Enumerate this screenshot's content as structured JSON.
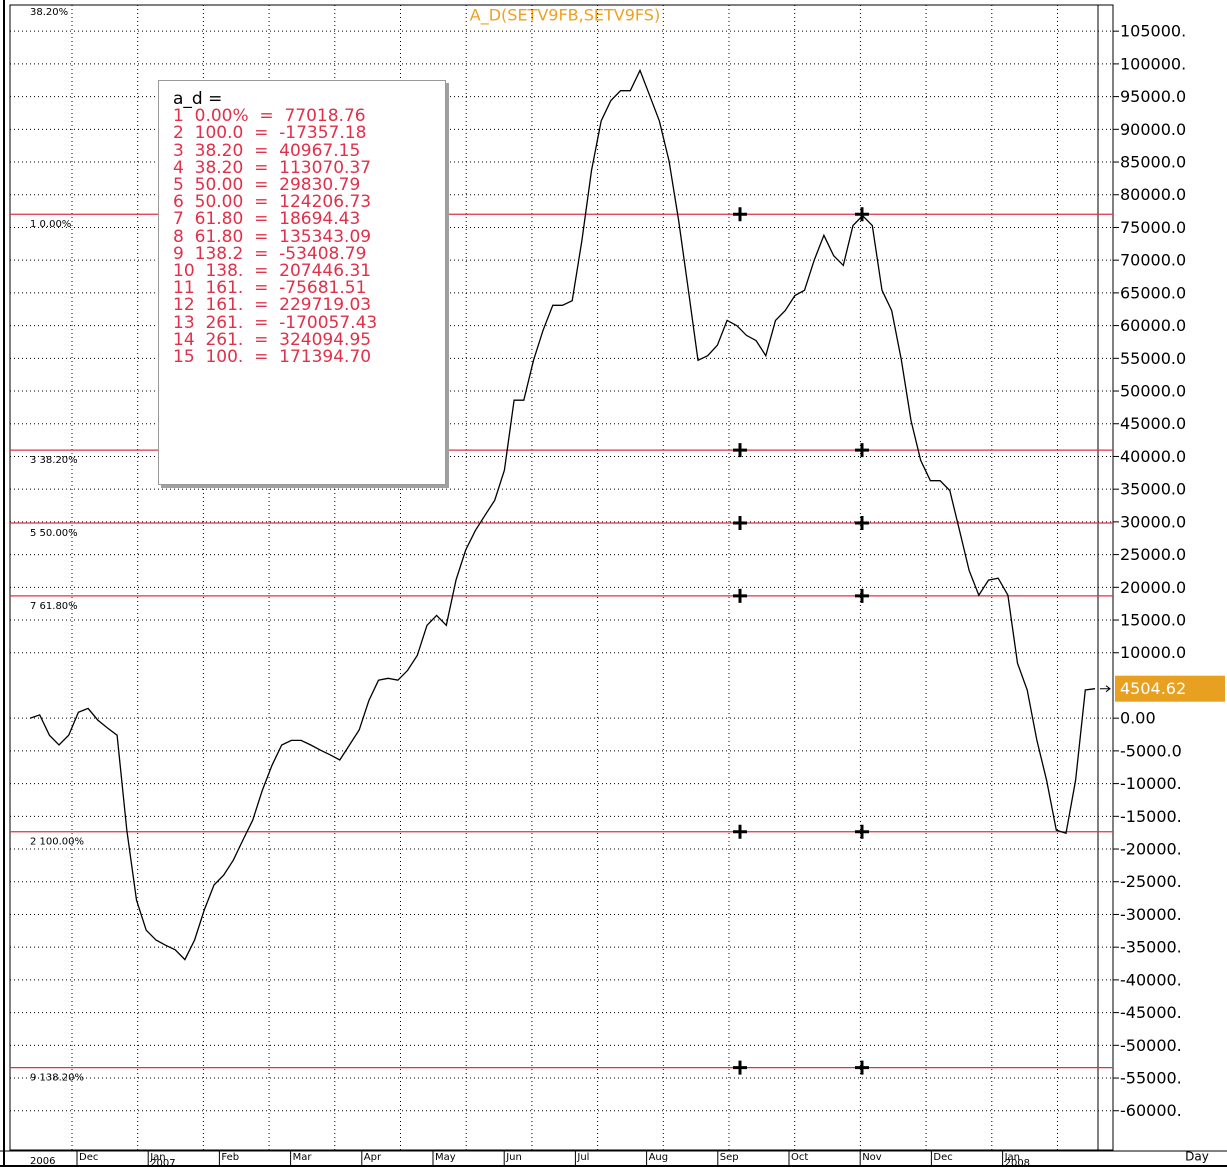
{
  "chart_data": {
    "type": "line",
    "title": "A_D(SETV9FB,SETV9FS)",
    "ylim": [
      -66000,
      109000
    ],
    "yticks": [
      {
        "value": 105000,
        "label": "105000."
      },
      {
        "value": 100000,
        "label": "100000."
      },
      {
        "value": 95000,
        "label": "95000.0"
      },
      {
        "value": 90000,
        "label": "90000.0"
      },
      {
        "value": 85000,
        "label": "85000.0"
      },
      {
        "value": 80000,
        "label": "80000.0"
      },
      {
        "value": 75000,
        "label": "75000.0"
      },
      {
        "value": 70000,
        "label": "70000.0"
      },
      {
        "value": 65000,
        "label": "65000.0"
      },
      {
        "value": 60000,
        "label": "60000.0"
      },
      {
        "value": 55000,
        "label": "55000.0"
      },
      {
        "value": 50000,
        "label": "50000.0"
      },
      {
        "value": 45000,
        "label": "45000.0"
      },
      {
        "value": 40000,
        "label": "40000.0"
      },
      {
        "value": 35000,
        "label": "35000.0"
      },
      {
        "value": 30000,
        "label": "30000.0"
      },
      {
        "value": 25000,
        "label": "25000.0"
      },
      {
        "value": 20000,
        "label": "20000.0"
      },
      {
        "value": 15000,
        "label": "15000.0"
      },
      {
        "value": 10000,
        "label": "10000.0"
      },
      {
        "value": 0,
        "label": "0.00"
      },
      {
        "value": -5000,
        "label": "-5000.0"
      },
      {
        "value": -10000,
        "label": "-10000."
      },
      {
        "value": -15000,
        "label": "-15000."
      },
      {
        "value": -20000,
        "label": "-20000."
      },
      {
        "value": -25000,
        "label": "-25000."
      },
      {
        "value": -30000,
        "label": "-30000."
      },
      {
        "value": -35000,
        "label": "-35000."
      },
      {
        "value": -40000,
        "label": "-40000."
      },
      {
        "value": -45000,
        "label": "-45000."
      },
      {
        "value": -50000,
        "label": "-50000."
      },
      {
        "value": -55000,
        "label": "-55000."
      },
      {
        "value": -60000,
        "label": "-60000."
      }
    ],
    "grid": true,
    "series": [
      {
        "name": "a_d",
        "color": "#000000",
        "values": [
          0,
          500,
          -2600,
          -4100,
          -2600,
          900,
          1500,
          -300,
          -1500,
          -2600,
          -17100,
          -27800,
          -32400,
          -33900,
          -34700,
          -35400,
          -36900,
          -33900,
          -29300,
          -25500,
          -24000,
          -21700,
          -18600,
          -15600,
          -11000,
          -7200,
          -4100,
          -3400,
          -3400,
          -4100,
          -4900,
          -5600,
          -6400,
          -4100,
          -1800,
          2700,
          5800,
          6100,
          5800,
          7300,
          9600,
          14200,
          15700,
          14200,
          21100,
          25700,
          28700,
          31000,
          33300,
          37900,
          48600,
          48600,
          54700,
          59300,
          63100,
          63100,
          63800,
          73000,
          83700,
          91300,
          94400,
          95900,
          95900,
          99000,
          95200,
          91300,
          85200,
          76000,
          65400,
          54700,
          55400,
          57000,
          60800,
          60000,
          58500,
          57700,
          55400,
          60800,
          62300,
          64600,
          65400,
          70000,
          73800,
          70700,
          69200,
          75300,
          76800,
          75300,
          65400,
          62300,
          54700,
          45500,
          39400,
          36300,
          36300,
          34800,
          28700,
          22600,
          18800,
          21100,
          21400,
          18800,
          8400,
          4300,
          -3400,
          -9500,
          -17100,
          -17600,
          -9500,
          4300,
          4504.62
        ]
      }
    ],
    "last_value": 4504.62,
    "levels": [
      {
        "label": "38.20%",
        "value": 113070.37
      },
      {
        "label": "1 0.00%",
        "value": 77018.76
      },
      {
        "label": "3 38.20%",
        "value": 40967.15
      },
      {
        "label": "5 50.00%",
        "value": 29830.79
      },
      {
        "label": "7 61.80%",
        "value": 18694.43
      },
      {
        "label": "2 100.00%",
        "value": -17357.18
      },
      {
        "label": "9 138.20%",
        "value": -53408.79
      }
    ],
    "legend": {
      "header": "a_d   =",
      "lines": [
        "1  0.00%  =  77018.76",
        "2  100.0  =  -17357.18",
        "3  38.20  =  40967.15",
        "4  38.20  =  113070.37",
        "5  50.00  =  29830.79",
        "6  50.00  =  124206.73",
        "7  61.80  =  18694.43",
        "8  61.80  =  135343.09",
        "9  138.2  =  -53408.79",
        "10  138.  =  207446.31",
        "11  161.  =  -75681.51",
        "12  161.  =  229719.03",
        "13  261.  =  -170057.43",
        "14  261.  =  324094.95",
        "15  100.  =  171394.70"
      ]
    },
    "months": [
      "Dec",
      "Jan",
      "Feb",
      "Mar",
      "Apr",
      "May",
      "Jun",
      "Jul",
      "Aug",
      "Sep",
      "Oct",
      "Nov",
      "Dec",
      "Jan"
    ],
    "years": [
      null,
      "2007",
      null,
      null,
      null,
      null,
      null,
      null,
      null,
      null,
      null,
      null,
      null,
      "2008"
    ],
    "start_year": "2006",
    "x_axis_label": "Day"
  }
}
